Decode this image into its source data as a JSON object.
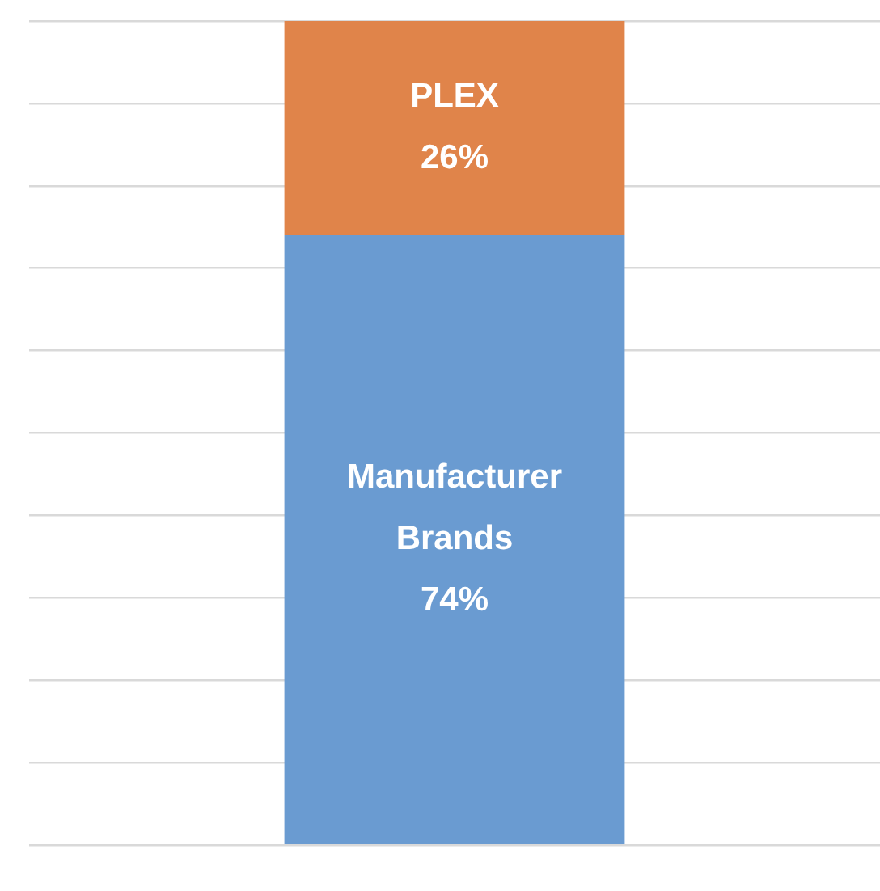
{
  "chart_data": {
    "type": "bar",
    "stacked": true,
    "categories": [
      null
    ],
    "series": [
      {
        "name": "Manufacturer Brands",
        "color": "#6a9bd1",
        "values": [
          74
        ],
        "value_labels": [
          "74%"
        ]
      },
      {
        "name": "PLEX",
        "color": "#e0844a",
        "values": [
          26
        ],
        "value_labels": [
          "26%"
        ]
      }
    ],
    "ylim": [
      0,
      100
    ],
    "yticks": [
      {
        "value": 0,
        "label": null
      },
      {
        "value": 10,
        "label": null
      },
      {
        "value": 20,
        "label": null
      },
      {
        "value": 30,
        "label": null
      },
      {
        "value": 40,
        "label": null
      },
      {
        "value": 50,
        "label": null
      },
      {
        "value": 60,
        "label": null
      },
      {
        "value": 70,
        "label": null
      },
      {
        "value": 80,
        "label": null
      },
      {
        "value": 90,
        "label": null
      },
      {
        "value": 100,
        "label": null
      }
    ],
    "grid": "y",
    "legend": false
  }
}
